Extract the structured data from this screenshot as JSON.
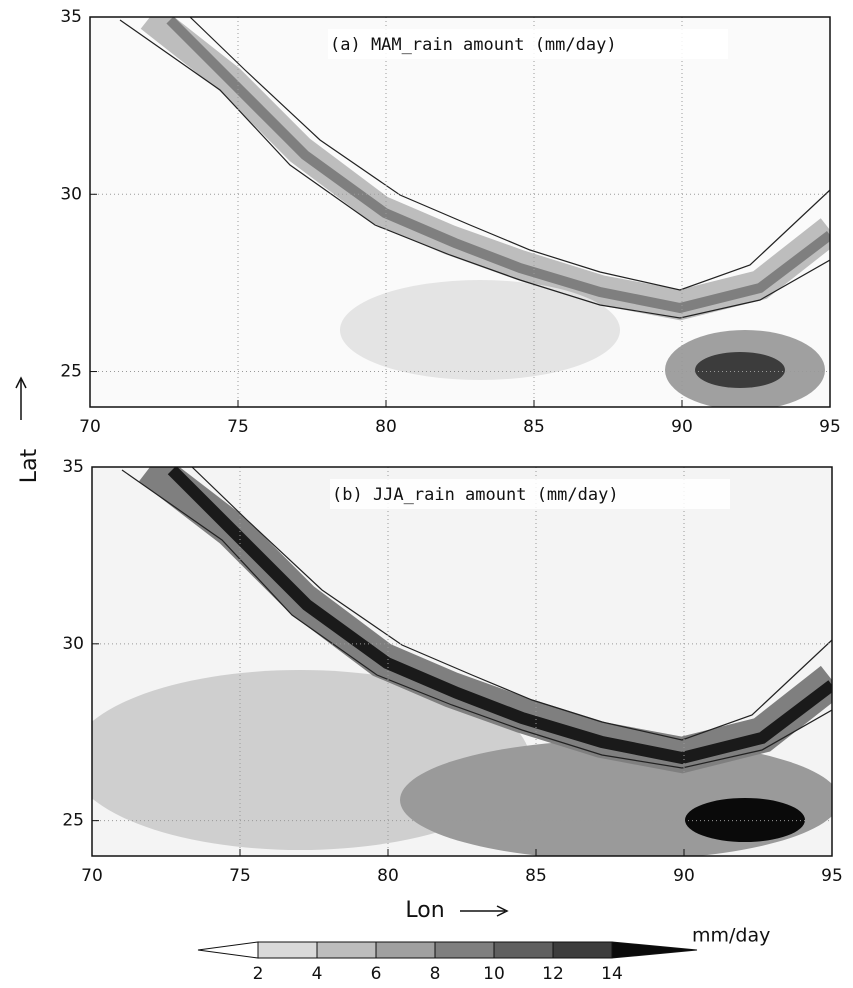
{
  "chart_data": [
    {
      "type": "map",
      "title": "(a) MAM_rain amount (mm/day)",
      "xlim": [
        70,
        95
      ],
      "ylim": [
        24,
        35
      ],
      "xticks": [
        70,
        75,
        80,
        85,
        90,
        95
      ],
      "yticks": [
        25,
        30,
        35
      ],
      "grid": true
    },
    {
      "type": "map",
      "title": "(b) JJA_rain amount (mm/day)",
      "xlim": [
        70,
        95
      ],
      "ylim": [
        24,
        35
      ],
      "xticks": [
        70,
        75,
        80,
        85,
        90,
        95
      ],
      "yticks": [
        25,
        30,
        35
      ],
      "grid": true
    }
  ],
  "axis_labels": {
    "x": "Lon",
    "y": "Lat"
  },
  "colorbar": {
    "ticks": [
      2,
      4,
      6,
      8,
      10,
      12,
      14
    ],
    "unit": "mm/day",
    "colors": [
      "#ffffff",
      "#d9d9d9",
      "#bdbdbd",
      "#a0a0a0",
      "#7f7f7f",
      "#5f5f5f",
      "#3c3c3c",
      "#0a0a0a"
    ]
  }
}
